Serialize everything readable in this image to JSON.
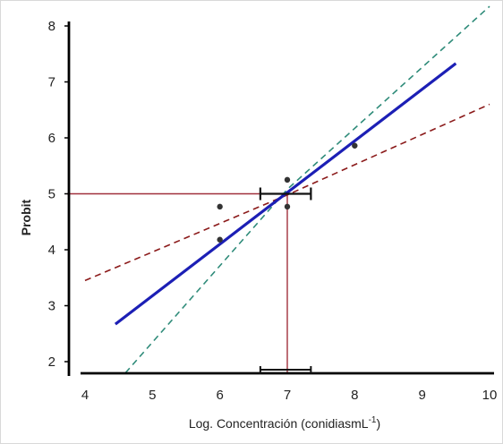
{
  "chart_data": {
    "type": "scatter",
    "xlabel": "Log. Concentración (conidiasmL",
    "xlabel_superscript": "-1",
    "xlabel_suffix": ")",
    "ylabel": "Probit",
    "xlim": [
      4,
      10
    ],
    "ylim": [
      2,
      8
    ],
    "x_ticks": [
      "4",
      "5",
      "6",
      "7",
      "8",
      "9",
      "10"
    ],
    "y_ticks": [
      "2",
      "3",
      "4",
      "5",
      "6",
      "7",
      "8"
    ],
    "grid": false,
    "legend": "none",
    "points": [
      {
        "x": 6.0,
        "y": 4.77
      },
      {
        "x": 6.0,
        "y": 4.18
      },
      {
        "x": 7.0,
        "y": 5.25
      },
      {
        "x": 7.0,
        "y": 4.77
      },
      {
        "x": 8.0,
        "y": 5.86
      }
    ],
    "regression_line": {
      "x": [
        4.45,
        9.5
      ],
      "y": [
        2.67,
        7.33
      ],
      "color": "#1c1fb5"
    },
    "confidence_upper": {
      "x": [
        4.6,
        7.0,
        10.0
      ],
      "y": [
        1.8,
        5.08,
        8.35
      ],
      "color": "#2e8b79"
    },
    "confidence_lower": {
      "x": [
        4.0,
        7.0,
        10.0
      ],
      "y": [
        3.45,
        4.98,
        6.6
      ],
      "color": "#8b1a1a"
    },
    "lc50_reference": {
      "x": 7.0,
      "y": 5.0,
      "color": "#a0303c"
    },
    "lc50_interval": {
      "x_low": 6.6,
      "x_high": 7.35
    },
    "marker_color": "#333333"
  }
}
